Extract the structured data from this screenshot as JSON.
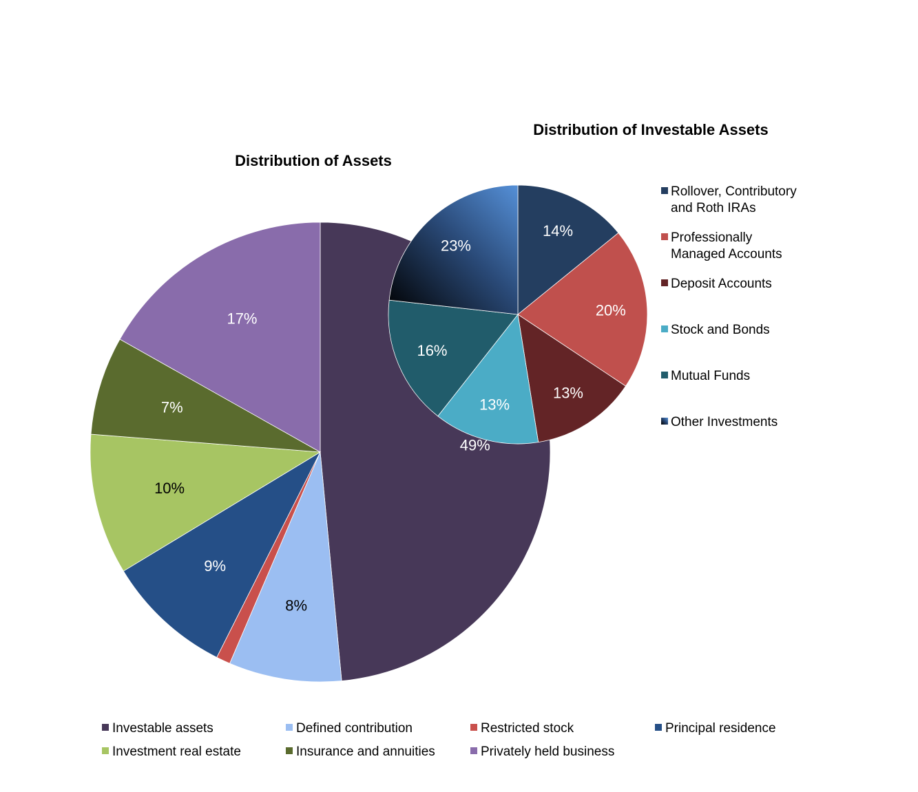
{
  "chart_data": [
    {
      "type": "pie",
      "title": "Distribution of Assets",
      "categories": [
        "Investable assets",
        "Defined contribution",
        "Restricted stock",
        "Principal residence",
        "Investment real estate",
        "Insurance and annuities",
        "Privately held business"
      ],
      "values": [
        49,
        8,
        1,
        9,
        10,
        7,
        17
      ],
      "labels": [
        "49%",
        "8%",
        "",
        "9%",
        "10%",
        "7%",
        "17%"
      ],
      "colors": [
        "#473858",
        "#9bbef2",
        "#c9504c",
        "#254f87",
        "#a7c563",
        "#5a6b2e",
        "#896cab"
      ],
      "label_colors": [
        "#ffffff",
        "#000000",
        "#000000",
        "#ffffff",
        "#000000",
        "#ffffff",
        "#ffffff"
      ],
      "legend_position": "bottom"
    },
    {
      "type": "pie",
      "title": "Distribution of Investable Assets",
      "categories": [
        "Rollover, Contributory and Roth IRAs",
        "Professionally Managed Accounts",
        "Deposit Accounts",
        "Stock and Bonds",
        "Mutual Funds",
        "Other Investments"
      ],
      "legend_lines": [
        [
          "Rollover, Contributory",
          "and Roth IRAs"
        ],
        [
          "Professionally",
          "Managed Accounts"
        ],
        [
          "Deposit Accounts"
        ],
        [
          "Stock and Bonds"
        ],
        [
          "Mutual Funds"
        ],
        [
          "Other Investments"
        ]
      ],
      "values": [
        14,
        20,
        13,
        13,
        16,
        23
      ],
      "labels": [
        "14%",
        "20%",
        "13%",
        "13%",
        "16%",
        "23%"
      ],
      "colors": [
        "#243e60",
        "#c0504d",
        "#632426",
        "#4bacc6",
        "#215c6b",
        "#1f3a68"
      ],
      "label_colors": [
        "#ffffff",
        "#ffffff",
        "#ffffff",
        "#ffffff",
        "#ffffff",
        "#ffffff"
      ],
      "legend_position": "right"
    }
  ]
}
